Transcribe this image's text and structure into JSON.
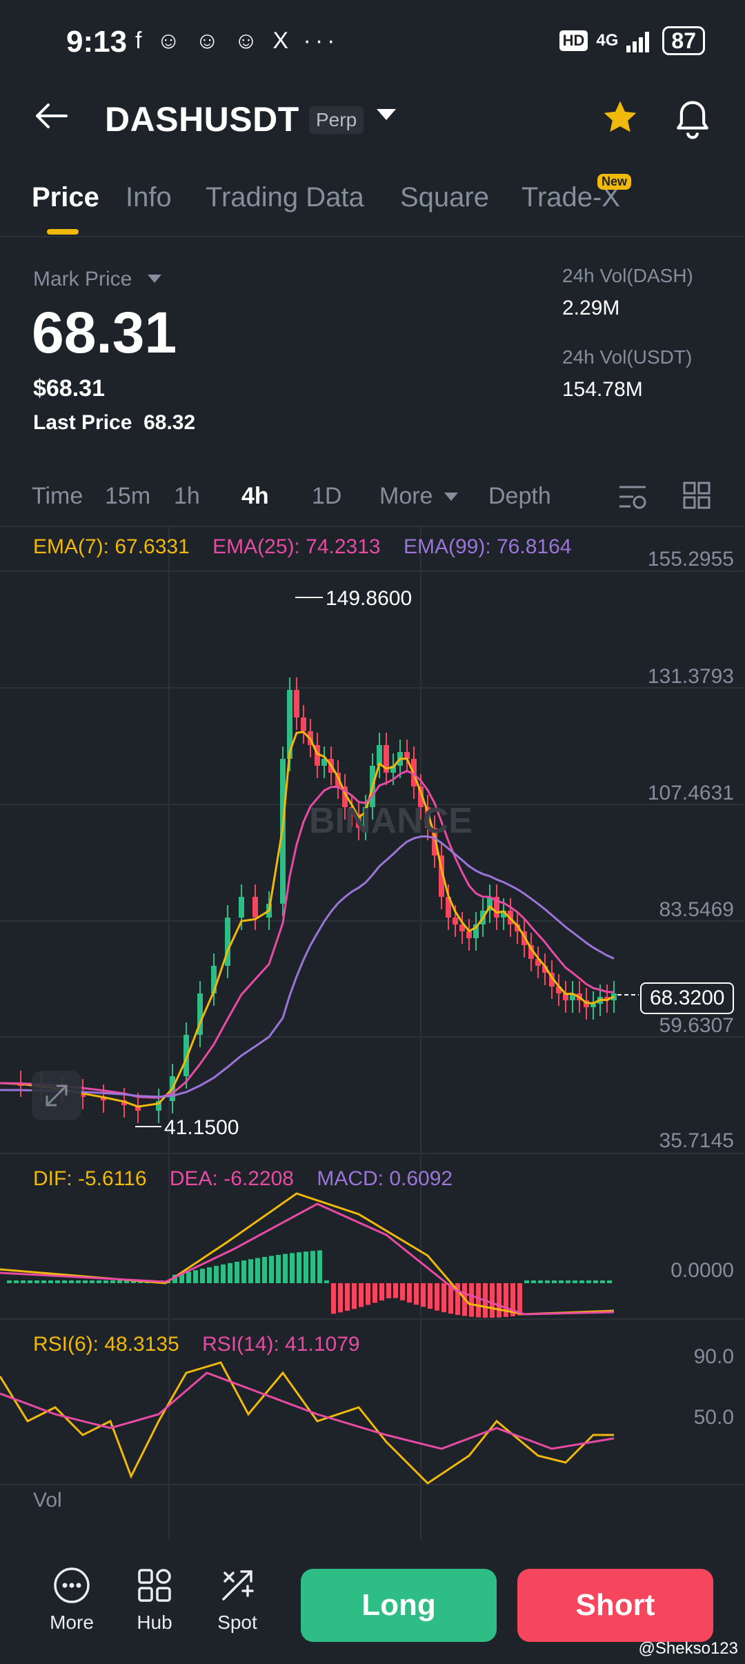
{
  "status_bar": {
    "time": "9:13",
    "left_icons": "f ☺ ☺ ☺ X ···",
    "hd": "HD",
    "network": "4G",
    "battery": "87"
  },
  "header": {
    "back_icon": "arrow-left-icon",
    "symbol": "DASHUSDT",
    "badge": "Perp",
    "favorite_icon": "star-icon",
    "bell_icon": "bell-icon"
  },
  "tabs": [
    {
      "label": "Price"
    },
    {
      "label": "Info"
    },
    {
      "label": "Trading Data"
    },
    {
      "label": "Square"
    },
    {
      "label": "Trade-X"
    }
  ],
  "tab_new_badge": "New",
  "price_panel": {
    "mark_label": "Mark Price",
    "mark_price": "68.31",
    "usd_price": "$68.31",
    "last_price_label": "Last Price",
    "last_price": "68.32",
    "vol_dash_label": "24h Vol(DASH)",
    "vol_dash": "2.29M",
    "vol_usdt_label": "24h Vol(USDT)",
    "vol_usdt": "154.78M"
  },
  "timeframes": [
    {
      "label": "Time"
    },
    {
      "label": "15m"
    },
    {
      "label": "1h"
    },
    {
      "label": "4h"
    },
    {
      "label": "1D"
    },
    {
      "label": "More"
    },
    {
      "label": "Depth"
    }
  ],
  "indicators": {
    "ema7": "EMA(7): 67.6331",
    "ema25": "EMA(25): 74.2313",
    "ema99": "EMA(99): 76.8164",
    "dif": "DIF: -5.6116",
    "dea": "DEA: -6.2208",
    "macd": "MACD: 0.6092",
    "rsi6": "RSI(6): 48.3135",
    "rsi14": "RSI(14): 41.1079",
    "vol": "Vol"
  },
  "chart_data": {
    "type": "candlestick",
    "price_axis_ticks": [
      "155.2955",
      "131.3793",
      "107.4631",
      "83.5469",
      "59.6307",
      "35.7145"
    ],
    "current_price_tag": "68.3200",
    "high_marker": "149.8600",
    "low_marker": "41.1500",
    "macd_axis_ticks": [
      "0.0000"
    ],
    "rsi_axis_ticks": [
      "90.0",
      "50.0"
    ],
    "watermark": "BINANCE",
    "colors": {
      "up": "#2ebd85",
      "down": "#f6465d",
      "ema7": "#f0b90b",
      "ema25": "#e84ba4",
      "ema99": "#9b75d9"
    }
  },
  "bottom_nav": {
    "more": "More",
    "hub": "Hub",
    "spot": "Spot",
    "long": "Long",
    "short": "Short",
    "credit": "@Shekso123"
  }
}
